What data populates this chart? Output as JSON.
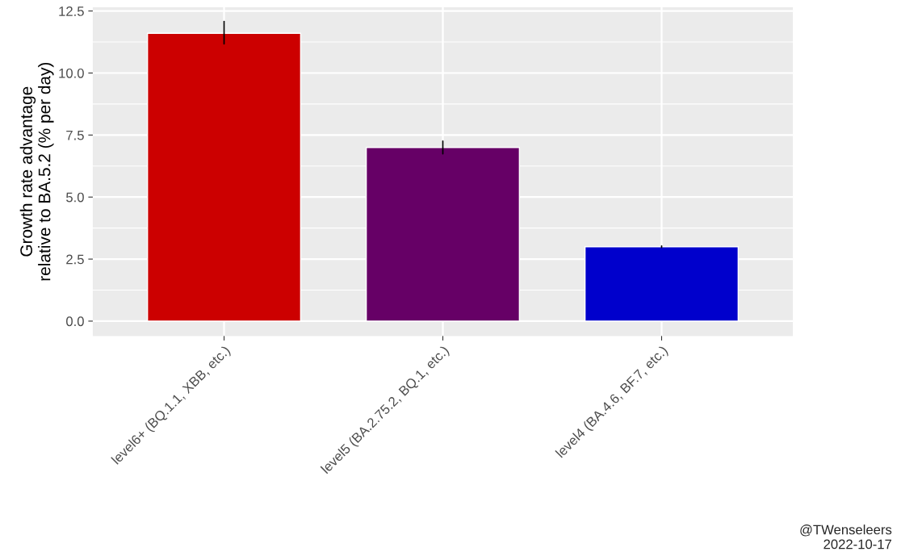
{
  "chart_data": {
    "type": "bar",
    "ylabel": "Growth rate advantage\nrelative to BA.5.2 (% per day)",
    "categories": [
      "level6+ (BQ.1.1, XBB, etc.)",
      "level5 (BA.2.75.2, BQ.1, etc.)",
      "level4 (BA.4.6, BF.7, etc.)"
    ],
    "values": [
      11.6,
      7.0,
      3.0
    ],
    "colors": [
      "#cc0000",
      "#660066",
      "#0000cc"
    ],
    "errors": [
      [
        11.17,
        12.08
      ],
      [
        6.74,
        7.26
      ],
      [
        2.97,
        3.03
      ]
    ],
    "ylim": [
      -0.6,
      12.65
    ],
    "yticks": [
      {
        "value": 0,
        "label": "0.0"
      },
      {
        "value": 2.5,
        "label": "2.5"
      },
      {
        "value": 5,
        "label": "5.0"
      },
      {
        "value": 7.5,
        "label": "7.5"
      },
      {
        "value": 10,
        "label": "10.0"
      },
      {
        "value": 12.5,
        "label": "12.5"
      }
    ],
    "grid": true,
    "annotations": [
      "@TWenseleers\n2022-10-17"
    ]
  }
}
